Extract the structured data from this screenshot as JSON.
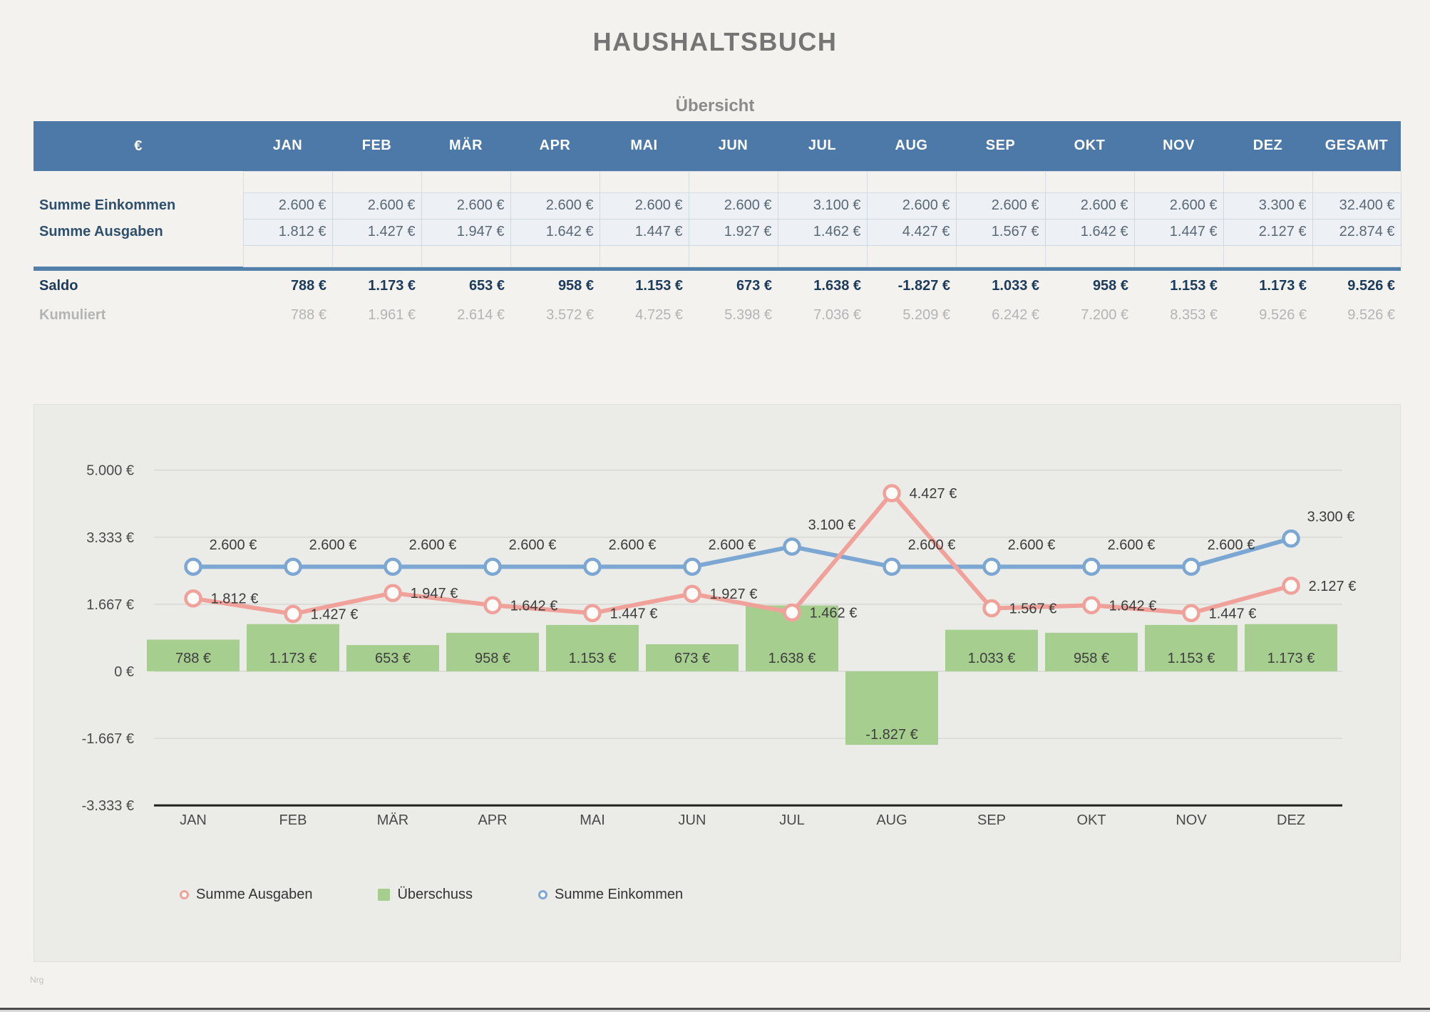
{
  "title": "HAUSHALTSBUCH",
  "watermark": "Nrg",
  "table": {
    "title": "Übersicht",
    "unit_header": "€",
    "months": [
      "JAN",
      "FEB",
      "MÄR",
      "APR",
      "MAI",
      "JUN",
      "JUL",
      "AUG",
      "SEP",
      "OKT",
      "NOV",
      "DEZ"
    ],
    "total_header": "GESAMT",
    "rows": [
      {
        "label": "Summe Einkommen",
        "style": "data",
        "values": [
          "2.600 €",
          "2.600 €",
          "2.600 €",
          "2.600 €",
          "2.600 €",
          "2.600 €",
          "3.100 €",
          "2.600 €",
          "2.600 €",
          "2.600 €",
          "2.600 €",
          "3.300 €"
        ],
        "total": "32.400 €"
      },
      {
        "label": "Summe Ausgaben",
        "style": "data",
        "values": [
          "1.812 €",
          "1.427 €",
          "1.947 €",
          "1.642 €",
          "1.447 €",
          "1.927 €",
          "1.462 €",
          "4.427 €",
          "1.567 €",
          "1.642 €",
          "1.447 €",
          "2.127 €"
        ],
        "total": "22.874 €"
      },
      {
        "label": "Saldo",
        "style": "saldo",
        "values": [
          "788 €",
          "1.173 €",
          "653 €",
          "958 €",
          "1.153 €",
          "673 €",
          "1.638 €",
          "-1.827 €",
          "1.033 €",
          "958 €",
          "1.153 €",
          "1.173 €"
        ],
        "total": "9.526 €"
      },
      {
        "label": "Kumuliert",
        "style": "kumuliert",
        "values": [
          "788 €",
          "1.961 €",
          "2.614 €",
          "3.572 €",
          "4.725 €",
          "5.398 €",
          "7.036 €",
          "5.209 €",
          "6.242 €",
          "7.200 €",
          "8.353 €",
          "9.526 €"
        ],
        "total": "9.526 €"
      }
    ]
  },
  "chart_data": {
    "type": "combo",
    "categories": [
      "JAN",
      "FEB",
      "MÄR",
      "APR",
      "MAI",
      "JUN",
      "JUL",
      "AUG",
      "SEP",
      "OKT",
      "NOV",
      "DEZ"
    ],
    "series": [
      {
        "name": "Summe Ausgaben",
        "type": "line",
        "color": "#f0a29a",
        "values": [
          1812,
          1427,
          1947,
          1642,
          1447,
          1927,
          1462,
          4427,
          1567,
          1642,
          1447,
          2127
        ],
        "labels": [
          "1.812 €",
          "1.427 €",
          "1.947 €",
          "1.642 €",
          "1.447 €",
          "1.927 €",
          "1.462 €",
          "4.427 €",
          "1.567 €",
          "1.642 €",
          "1.447 €",
          "2.127 €"
        ]
      },
      {
        "name": "Überschuss",
        "type": "bar",
        "color": "#a6ce8f",
        "values": [
          788,
          1173,
          653,
          958,
          1153,
          673,
          1638,
          -1827,
          1033,
          958,
          1153,
          1173
        ],
        "labels": [
          "788 €",
          "1.173 €",
          "653 €",
          "958 €",
          "1.153 €",
          "673 €",
          "1.638 €",
          "-1.827 €",
          "1.033 €",
          "958 €",
          "1.153 €",
          "1.173 €"
        ]
      },
      {
        "name": "Summe Einkommen",
        "type": "line",
        "color": "#7ba7d2",
        "values": [
          2600,
          2600,
          2600,
          2600,
          2600,
          2600,
          3100,
          2600,
          2600,
          2600,
          2600,
          3300
        ],
        "labels": [
          "2.600 €",
          "2.600 €",
          "2.600 €",
          "2.600 €",
          "2.600 €",
          "2.600 €",
          "3.100 €",
          "2.600 €",
          "2.600 €",
          "2.600 €",
          "2.600 €",
          "3.300 €"
        ]
      }
    ],
    "y_ticks": [
      5000,
      3333,
      1667,
      0,
      -1667,
      -3333
    ],
    "y_tick_labels": [
      "5.000 €",
      "3.333 €",
      "1.667 €",
      "0 €",
      "-1.667 €",
      "-3.333 €"
    ],
    "ylim": [
      -3333,
      5000
    ],
    "grid": true,
    "legend_position": "bottom"
  }
}
